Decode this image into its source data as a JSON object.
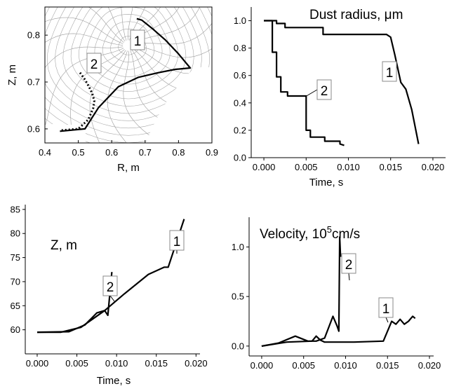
{
  "chart_data": [
    {
      "id": "rz",
      "type": "line",
      "xlabel": "R, m",
      "ylabel": "Z, m",
      "title": "",
      "xlim": [
        0.4,
        0.9
      ],
      "ylim": [
        0.57,
        0.86
      ],
      "xticks": [
        "0.4",
        "0.5",
        "0.6",
        "0.7",
        "0.8",
        "0.9"
      ],
      "yticks": [
        "0.6",
        "0.7",
        "0.8"
      ],
      "grid": "curvilinear magnetic mesh (decorative background)",
      "series": [
        {
          "name": "1",
          "style": "solid",
          "x": [
            0.445,
            0.52,
            0.56,
            0.62,
            0.68,
            0.74,
            0.79,
            0.835,
            0.8,
            0.76,
            0.72,
            0.69,
            0.675
          ],
          "y": [
            0.595,
            0.6,
            0.645,
            0.69,
            0.71,
            0.72,
            0.727,
            0.73,
            0.76,
            0.79,
            0.815,
            0.832,
            0.835
          ]
        },
        {
          "name": "2",
          "style": "dotted",
          "x": [
            0.45,
            0.5,
            0.53,
            0.545,
            0.548,
            0.542,
            0.532,
            0.52,
            0.505
          ],
          "y": [
            0.597,
            0.6,
            0.62,
            0.645,
            0.66,
            0.675,
            0.69,
            0.705,
            0.72
          ]
        }
      ],
      "labels": [
        "1",
        "2"
      ]
    },
    {
      "id": "radius",
      "type": "line",
      "title": "Dust radius, μm",
      "xlabel": "Time, s",
      "ylabel": "",
      "xlim": [
        -0.0015,
        0.0215
      ],
      "ylim": [
        0.0,
        1.1
      ],
      "xticks": [
        "0.000",
        "0.005",
        "0.010",
        "0.015",
        "0.020"
      ],
      "yticks": [
        "0.0",
        "0.2",
        "0.4",
        "0.6",
        "0.8",
        "1.0"
      ],
      "series": [
        {
          "name": "1",
          "x": [
            0.0,
            0.0015,
            0.0015,
            0.0025,
            0.0025,
            0.007,
            0.007,
            0.0145,
            0.015,
            0.0155,
            0.0162,
            0.0168,
            0.0175,
            0.0183
          ],
          "y": [
            1.0,
            1.0,
            0.98,
            0.98,
            0.95,
            0.95,
            0.9,
            0.9,
            0.88,
            0.75,
            0.55,
            0.5,
            0.35,
            0.1
          ]
        },
        {
          "name": "2",
          "x": [
            0.0,
            0.001,
            0.001,
            0.0015,
            0.0015,
            0.002,
            0.002,
            0.0028,
            0.0028,
            0.005,
            0.005,
            0.0055,
            0.0055,
            0.0072,
            0.0072,
            0.009,
            0.009,
            0.0095
          ],
          "y": [
            1.0,
            1.0,
            0.77,
            0.77,
            0.59,
            0.59,
            0.48,
            0.48,
            0.45,
            0.45,
            0.2,
            0.2,
            0.15,
            0.15,
            0.12,
            0.12,
            0.1,
            0.09
          ]
        }
      ],
      "labels": [
        "1",
        "2"
      ]
    },
    {
      "id": "zt",
      "type": "line",
      "title": "Z, m",
      "xlabel": "Time, s",
      "ylabel": "",
      "xlim": [
        -0.0015,
        0.0205
      ],
      "ylim": [
        55,
        86
      ],
      "xticks": [
        "0.000",
        "0.005",
        "0.010",
        "0.015",
        "0.020"
      ],
      "yticks": [
        "60",
        "65",
        "70",
        "75",
        "80",
        "85"
      ],
      "series": [
        {
          "name": "1",
          "x": [
            0.0,
            0.003,
            0.0055,
            0.0085,
            0.011,
            0.014,
            0.016,
            0.0165,
            0.0185
          ],
          "y": [
            59.5,
            59.5,
            60.5,
            64.0,
            67.5,
            71.5,
            73.0,
            73.0,
            83.0
          ]
        },
        {
          "name": "2",
          "x": [
            0.0,
            0.004,
            0.006,
            0.0075,
            0.0085,
            0.0089,
            0.0094
          ],
          "y": [
            59.5,
            59.6,
            61.0,
            63.5,
            64.0,
            63.0,
            72.0
          ]
        }
      ],
      "labels": [
        "1",
        "2"
      ]
    },
    {
      "id": "velocity",
      "type": "line",
      "title": "Velocity, 10",
      "title_sup": "5",
      "title_unit": "cm/s",
      "xlabel": "",
      "ylabel": "",
      "xlim": [
        -0.0015,
        0.0205
      ],
      "ylim": [
        -0.1,
        1.3
      ],
      "xticks": [
        "0.000",
        "0.005",
        "0.010",
        "0.015",
        "0.020"
      ],
      "yticks": [
        "0.0",
        "0.5",
        "1.0"
      ],
      "series": [
        {
          "name": "1",
          "x": [
            0.0,
            0.003,
            0.006,
            0.0065,
            0.007,
            0.0075,
            0.009,
            0.011,
            0.0145,
            0.0155,
            0.016,
            0.0165,
            0.017,
            0.0175,
            0.018,
            0.0183
          ],
          "y": [
            0.0,
            0.04,
            0.05,
            0.1,
            0.06,
            0.04,
            0.04,
            0.04,
            0.05,
            0.25,
            0.22,
            0.27,
            0.22,
            0.25,
            0.3,
            0.28
          ]
        },
        {
          "name": "2",
          "x": [
            0.0,
            0.002,
            0.004,
            0.0055,
            0.0065,
            0.0075,
            0.0085,
            0.009,
            0.0092,
            0.0093,
            0.0094
          ],
          "y": [
            0.0,
            0.03,
            0.1,
            0.05,
            0.05,
            0.08,
            0.3,
            0.2,
            0.15,
            1.1,
            0.9
          ]
        }
      ],
      "labels": [
        "1",
        "2"
      ]
    }
  ]
}
